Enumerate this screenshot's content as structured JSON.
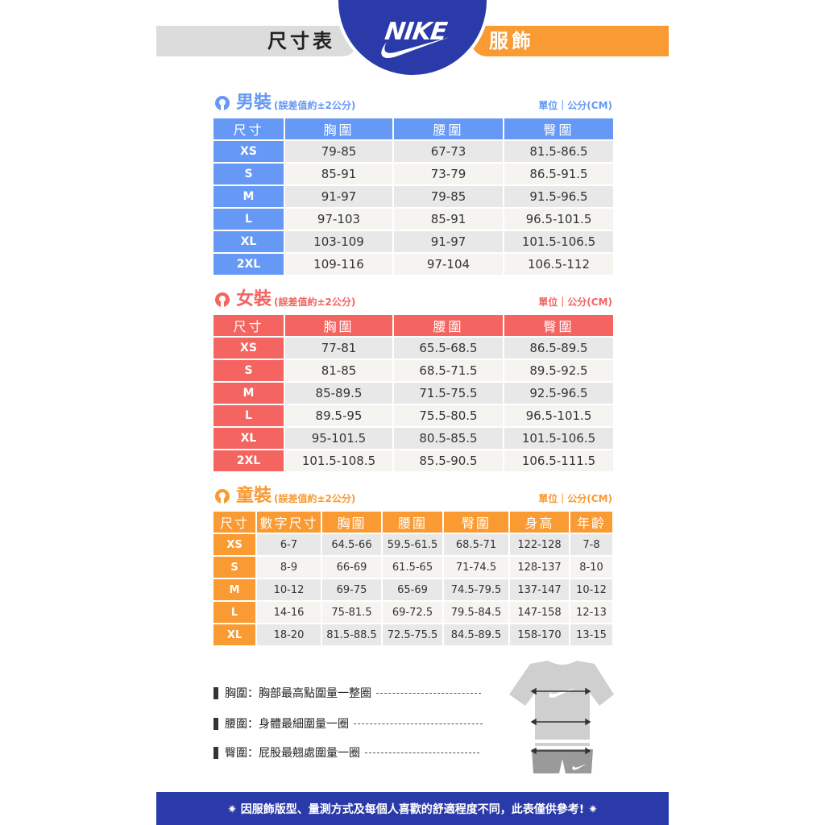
{
  "header": {
    "left_title": "尺寸表",
    "brand": "NIKE",
    "right_title": "服飾"
  },
  "colors": {
    "men": "#6699f5",
    "women": "#f46460",
    "kids": "#f99a33",
    "brand_blue": "#2a3aa8"
  },
  "men": {
    "title": "男裝",
    "note": "(誤差值約±2公分)",
    "unit": "單位｜公分(CM)",
    "headers": [
      "尺寸",
      "胸圍",
      "腰圍",
      "臀圍"
    ],
    "rows": [
      [
        "XS",
        "79-85",
        "67-73",
        "81.5-86.5"
      ],
      [
        "S",
        "85-91",
        "73-79",
        "86.5-91.5"
      ],
      [
        "M",
        "91-97",
        "79-85",
        "91.5-96.5"
      ],
      [
        "L",
        "97-103",
        "85-91",
        "96.5-101.5"
      ],
      [
        "XL",
        "103-109",
        "91-97",
        "101.5-106.5"
      ],
      [
        "2XL",
        "109-116",
        "97-104",
        "106.5-112"
      ]
    ]
  },
  "women": {
    "title": "女裝",
    "note": "(誤差值約±2公分)",
    "unit": "單位｜公分(CM)",
    "headers": [
      "尺寸",
      "胸圍",
      "腰圍",
      "臀圍"
    ],
    "rows": [
      [
        "XS",
        "77-81",
        "65.5-68.5",
        "86.5-89.5"
      ],
      [
        "S",
        "81-85",
        "68.5-71.5",
        "89.5-92.5"
      ],
      [
        "M",
        "85-89.5",
        "71.5-75.5",
        "92.5-96.5"
      ],
      [
        "L",
        "89.5-95",
        "75.5-80.5",
        "96.5-101.5"
      ],
      [
        "XL",
        "95-101.5",
        "80.5-85.5",
        "101.5-106.5"
      ],
      [
        "2XL",
        "101.5-108.5",
        "85.5-90.5",
        "106.5-111.5"
      ]
    ]
  },
  "kids": {
    "title": "童裝",
    "note": "(誤差值約±2公分)",
    "unit": "單位｜公分(CM)",
    "headers": [
      "尺寸",
      "數字尺寸",
      "胸圍",
      "腰圍",
      "臀圍",
      "身高",
      "年齡"
    ],
    "rows": [
      [
        "XS",
        "6-7",
        "64.5-66",
        "59.5-61.5",
        "68.5-71",
        "122-128",
        "7-8"
      ],
      [
        "S",
        "8-9",
        "66-69",
        "61.5-65",
        "71-74.5",
        "128-137",
        "8-10"
      ],
      [
        "M",
        "10-12",
        "69-75",
        "65-69",
        "74.5-79.5",
        "137-147",
        "10-12"
      ],
      [
        "L",
        "14-16",
        "75-81.5",
        "69-72.5",
        "79.5-84.5",
        "147-158",
        "12-13"
      ],
      [
        "XL",
        "18-20",
        "81.5-88.5",
        "72.5-75.5",
        "84.5-89.5",
        "158-170",
        "13-15"
      ]
    ]
  },
  "legend": [
    "胸圍：胸部最高點圍量一整圈",
    "腰圍：身體最細圍量一圈",
    "臀圍：屁股最翹處圍量一圈"
  ],
  "footer": "✷ 因服飾版型、量測方式及每個人喜歡的舒適程度不同，此表僅供參考! ✷"
}
